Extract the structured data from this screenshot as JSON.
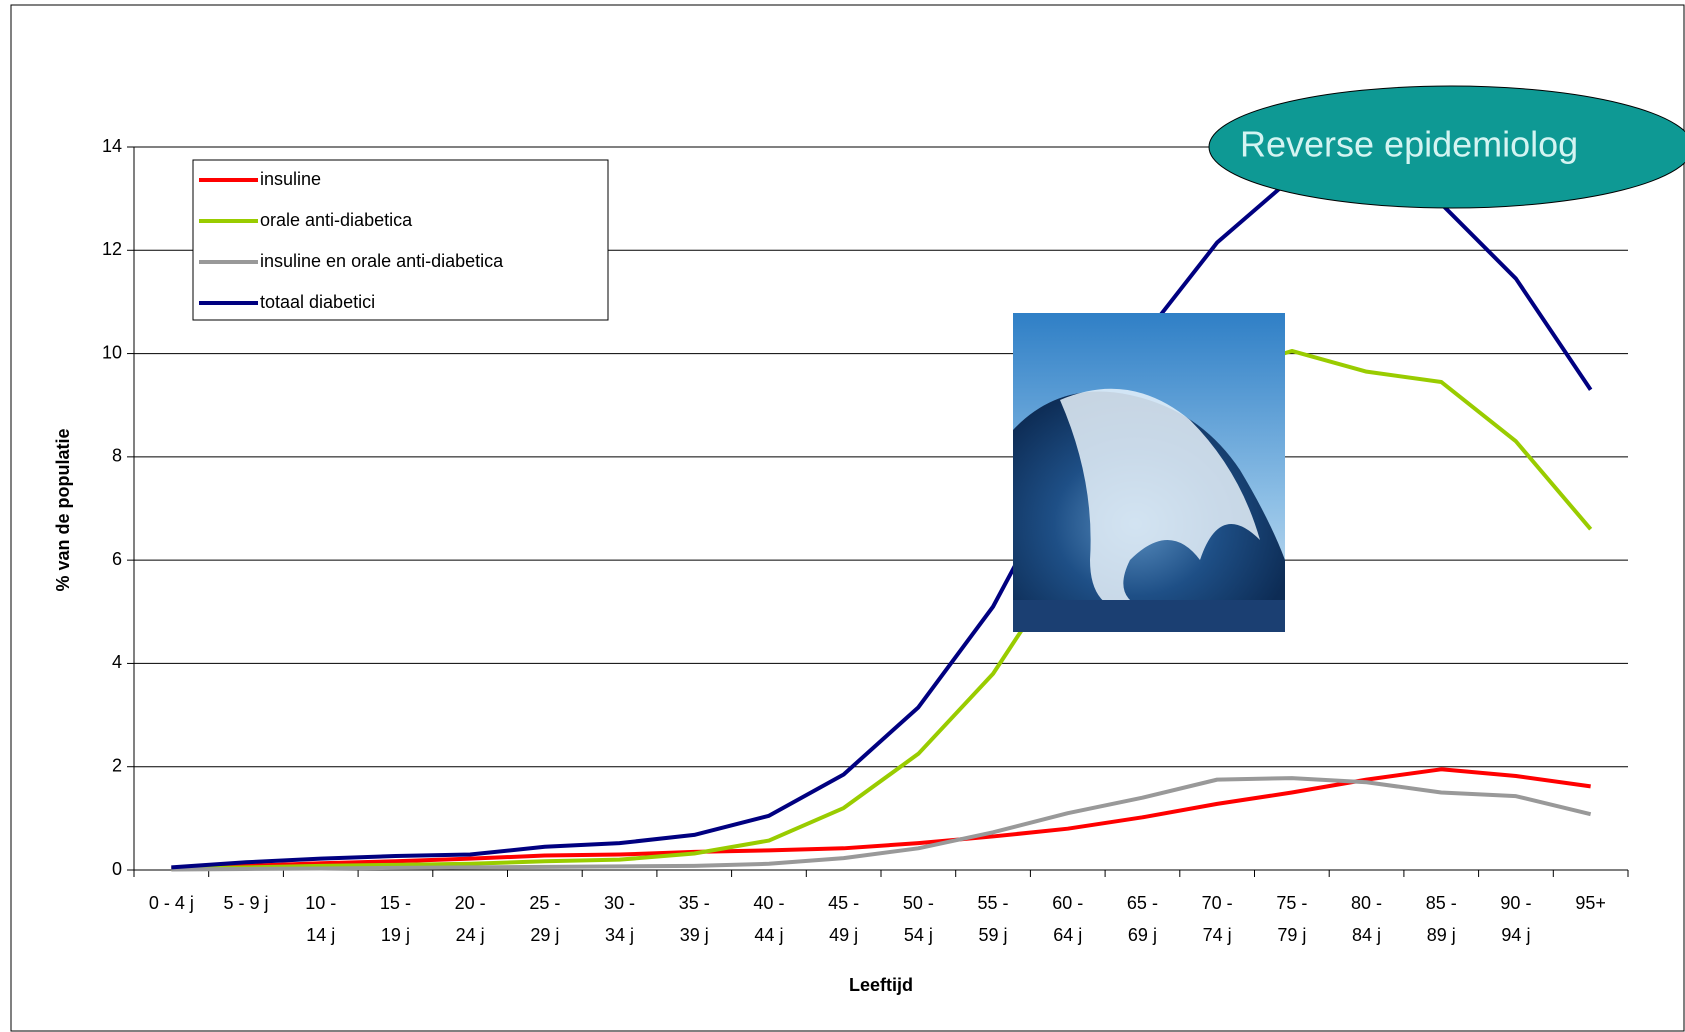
{
  "chart_data": {
    "type": "line",
    "x_label": "Leeftijd",
    "y_label": "% van de populatie",
    "annotation": "Reverse epidemiolog",
    "categories": [
      "0 - 4 j",
      "5 - 9 j",
      "10 -\n14 j",
      "15 -\n19 j",
      "20 -\n24 j",
      "25 -\n29 j",
      "30 -\n34 j",
      "35 -\n39 j",
      "40 -\n44 j",
      "45 -\n49 j",
      "50 -\n54 j",
      "55 -\n59 j",
      "60 -\n64 j",
      "65 -\n69 j",
      "70 -\n74 j",
      "75 -\n79 j",
      "80 -\n84 j",
      "85 -\n89 j",
      "90 -\n94 j",
      "95+"
    ],
    "series": [
      {
        "name": "insuline",
        "color": "#ff0000",
        "values": [
          0.03,
          0.08,
          0.13,
          0.17,
          0.22,
          0.28,
          0.3,
          0.35,
          0.38,
          0.42,
          0.52,
          0.65,
          0.8,
          1.02,
          1.28,
          1.5,
          1.75,
          1.95,
          1.82,
          1.62
        ]
      },
      {
        "name": "orale anti-diabetica",
        "color": "#99cc00",
        "values": [
          0.02,
          0.05,
          0.08,
          0.1,
          0.12,
          0.17,
          0.2,
          0.32,
          0.57,
          1.2,
          2.25,
          3.8,
          6.0,
          8.3,
          9.6,
          10.05,
          9.65,
          9.45,
          8.3,
          6.6
        ]
      },
      {
        "name": "insuline en orale anti-diabetica",
        "color": "#999999",
        "values": [
          0.01,
          0.02,
          0.03,
          0.04,
          0.05,
          0.06,
          0.07,
          0.08,
          0.12,
          0.23,
          0.42,
          0.73,
          1.1,
          1.4,
          1.75,
          1.78,
          1.7,
          1.5,
          1.43,
          1.08
        ]
      },
      {
        "name": "totaal diabetici",
        "color": "#000080",
        "values": [
          0.05,
          0.15,
          0.22,
          0.27,
          0.3,
          0.45,
          0.52,
          0.68,
          1.05,
          1.85,
          3.15,
          5.1,
          7.8,
          10.3,
          12.15,
          13.4,
          13.6,
          12.9,
          11.45,
          9.3
        ]
      }
    ],
    "ylim": [
      0,
      14
    ],
    "yticks": [
      0,
      2,
      4,
      6,
      8,
      10,
      12,
      14
    ],
    "grid": true,
    "legend": "upper left"
  }
}
